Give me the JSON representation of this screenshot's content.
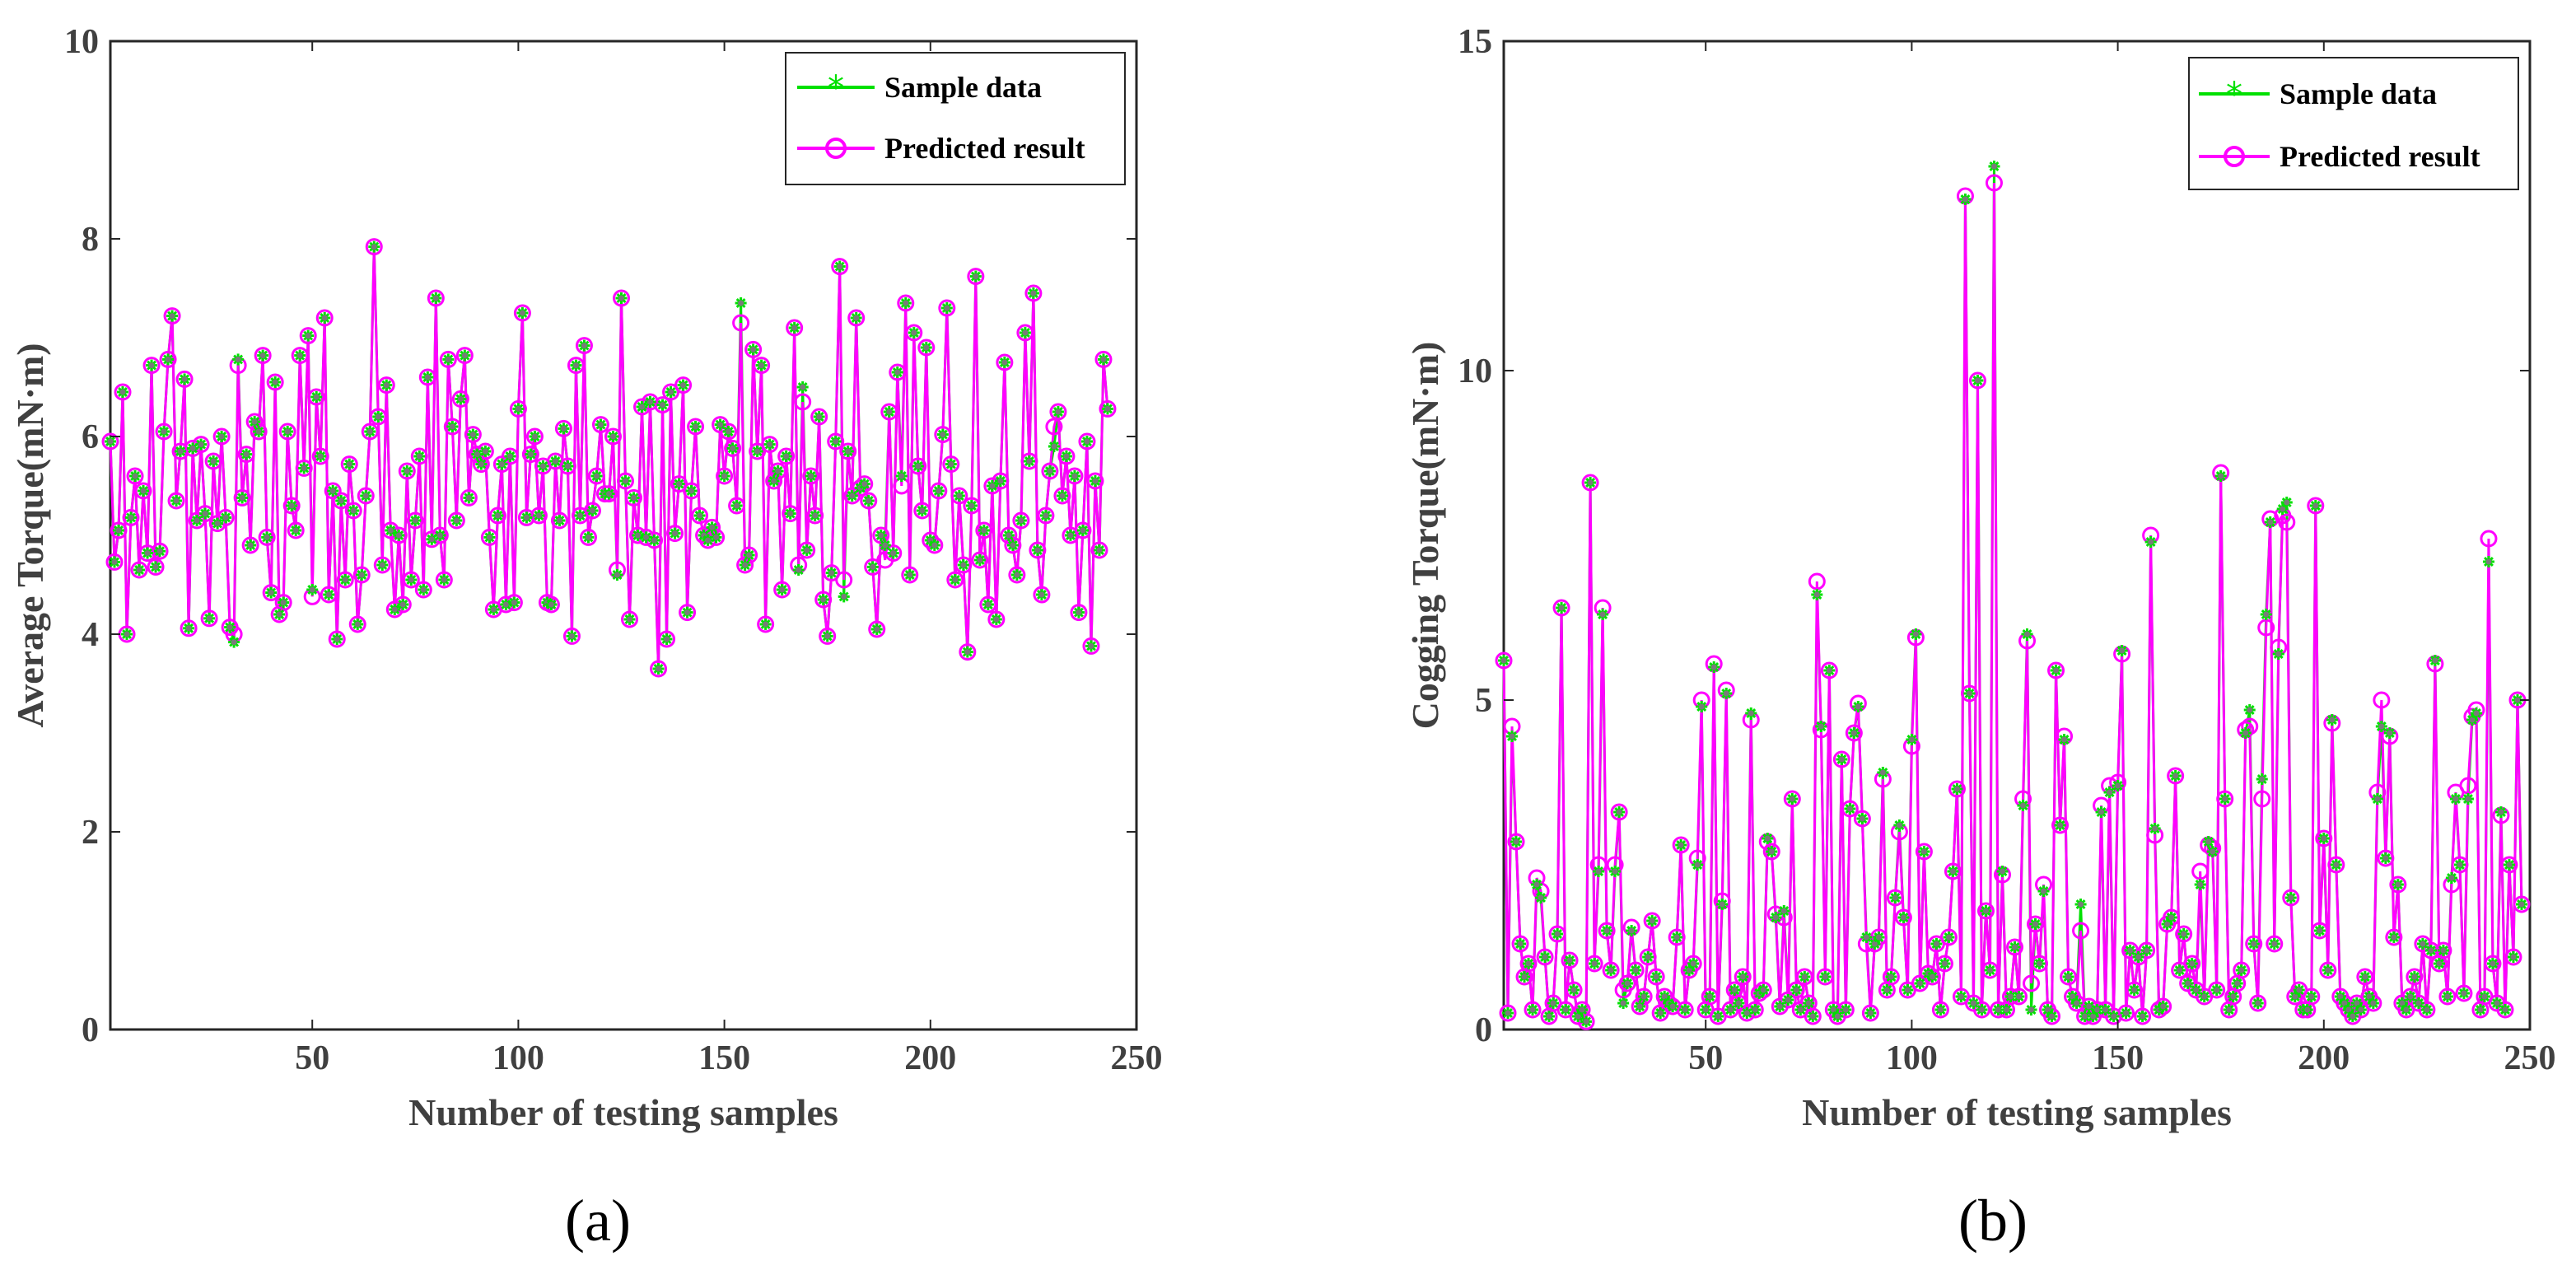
{
  "colors": {
    "sample": "#00e000",
    "predicted": "#ff00ff",
    "axis": "#262626",
    "text": "#404040",
    "marker_edge": "#7a7a7a"
  },
  "chart_data": [
    {
      "type": "line",
      "panel_label": "(a)",
      "xlabel": "Number of testing samples",
      "ylabel": "Average Torque(mN·m)",
      "xlim": [
        1,
        250
      ],
      "ylim": [
        0,
        10
      ],
      "xticks": [
        50,
        100,
        150,
        200,
        250
      ],
      "yticks": [
        0,
        2,
        4,
        6,
        8,
        10
      ],
      "legend_position": "top-right",
      "series": [
        {
          "name": "Sample data",
          "marker": "asterisk",
          "values": [
            5.95,
            4.73,
            5.05,
            6.45,
            4.0,
            5.18,
            5.6,
            4.65,
            5.45,
            4.82,
            6.72,
            4.68,
            4.84,
            6.05,
            6.78,
            7.22,
            5.35,
            5.85,
            6.58,
            4.06,
            5.88,
            5.15,
            5.92,
            5.22,
            4.16,
            5.75,
            5.12,
            6.0,
            5.18,
            4.07,
            3.92,
            6.78,
            5.38,
            5.82,
            4.9,
            6.15,
            6.05,
            6.82,
            4.98,
            4.42,
            6.55,
            4.2,
            4.32,
            6.05,
            5.3,
            5.05,
            6.82,
            5.68,
            7.02,
            4.45,
            6.4,
            5.8,
            7.2,
            4.4,
            5.45,
            3.95,
            5.35,
            4.55,
            5.72,
            5.25,
            4.1,
            4.6,
            5.4,
            6.05,
            7.92,
            6.2,
            4.7,
            6.52,
            5.05,
            4.25,
            5.0,
            4.3,
            5.65,
            4.55,
            5.15,
            5.8,
            4.45,
            6.6,
            4.96,
            7.4,
            5.0,
            4.55,
            6.78,
            6.1,
            5.15,
            6.38,
            6.82,
            5.38,
            6.02,
            5.82,
            5.72,
            5.85,
            4.98,
            4.25,
            5.2,
            5.72,
            4.3,
            5.8,
            4.32,
            6.28,
            7.25,
            5.18,
            5.82,
            6.0,
            5.2,
            5.7,
            4.32,
            4.3,
            5.75,
            5.15,
            6.08,
            5.7,
            3.98,
            6.72,
            5.2,
            6.92,
            4.98,
            5.25,
            5.6,
            6.12,
            5.42,
            5.42,
            6.0,
            4.6,
            7.4,
            5.55,
            4.15,
            5.38,
            5.0,
            6.3,
            4.98,
            6.35,
            4.95,
            3.65,
            6.32,
            3.95,
            6.45,
            5.02,
            5.52,
            6.52,
            4.22,
            5.45,
            6.1,
            5.2,
            5.0,
            4.95,
            5.08,
            4.98,
            6.12,
            5.6,
            6.05,
            5.88,
            5.3,
            7.35,
            4.7,
            4.8,
            6.88,
            5.85,
            6.72,
            4.1,
            5.92,
            5.55,
            5.65,
            4.45,
            5.8,
            5.22,
            7.1,
            4.65,
            6.5,
            4.85,
            5.6,
            5.2,
            6.2,
            4.35,
            3.98,
            4.62,
            5.95,
            7.72,
            4.38,
            5.85,
            5.4,
            7.2,
            5.48,
            5.52,
            5.35,
            4.68,
            4.05,
            5.0,
            4.9,
            6.25,
            4.82,
            6.65,
            5.6,
            7.35,
            4.6,
            7.05,
            5.7,
            5.25,
            6.9,
            4.95,
            4.9,
            5.45,
            6.02,
            7.3,
            5.72,
            4.55,
            5.4,
            4.7,
            3.82,
            5.3,
            7.62,
            4.75,
            5.05,
            4.3,
            5.5,
            4.15,
            5.55,
            6.75,
            5.0,
            4.9,
            4.6,
            5.15,
            7.05,
            5.75,
            7.45,
            4.85,
            4.4,
            5.2,
            5.65,
            5.9,
            6.25,
            5.4,
            5.8,
            5.0,
            5.6,
            4.22,
            5.05,
            5.95,
            3.88,
            5.55,
            4.85,
            6.78,
            6.28
          ]
        },
        {
          "name": "Predicted result",
          "marker": "circle",
          "values": [
            5.95,
            4.73,
            5.05,
            6.45,
            4.0,
            5.18,
            5.6,
            4.65,
            5.45,
            4.82,
            6.72,
            4.68,
            4.84,
            6.05,
            6.78,
            7.22,
            5.35,
            5.85,
            6.58,
            4.06,
            5.88,
            5.15,
            5.92,
            5.22,
            4.16,
            5.75,
            5.12,
            6.0,
            5.18,
            4.07,
            4.0,
            6.72,
            5.38,
            5.82,
            4.9,
            6.15,
            6.05,
            6.82,
            4.98,
            4.42,
            6.55,
            4.2,
            4.32,
            6.05,
            5.3,
            5.05,
            6.82,
            5.68,
            7.02,
            4.38,
            6.4,
            5.8,
            7.2,
            4.4,
            5.45,
            3.95,
            5.35,
            4.55,
            5.72,
            5.25,
            4.1,
            4.6,
            5.4,
            6.05,
            7.92,
            6.2,
            4.7,
            6.52,
            5.05,
            4.25,
            5.0,
            4.3,
            5.65,
            4.55,
            5.15,
            5.8,
            4.45,
            6.6,
            4.96,
            7.4,
            5.0,
            4.55,
            6.78,
            6.1,
            5.15,
            6.38,
            6.82,
            5.38,
            6.02,
            5.82,
            5.72,
            5.85,
            4.98,
            4.25,
            5.2,
            5.72,
            4.3,
            5.8,
            4.32,
            6.28,
            7.25,
            5.18,
            5.82,
            6.0,
            5.2,
            5.7,
            4.32,
            4.3,
            5.75,
            5.15,
            6.08,
            5.7,
            3.98,
            6.72,
            5.2,
            6.92,
            4.98,
            5.25,
            5.6,
            6.12,
            5.42,
            5.42,
            6.0,
            4.65,
            7.4,
            5.55,
            4.15,
            5.38,
            5.0,
            6.3,
            4.98,
            6.35,
            4.95,
            3.65,
            6.32,
            3.95,
            6.45,
            5.02,
            5.52,
            6.52,
            4.22,
            5.45,
            6.1,
            5.2,
            5.0,
            4.95,
            5.08,
            4.98,
            6.12,
            5.6,
            6.05,
            5.88,
            5.3,
            7.15,
            4.7,
            4.8,
            6.88,
            5.85,
            6.72,
            4.1,
            5.92,
            5.55,
            5.65,
            4.45,
            5.8,
            5.22,
            7.1,
            4.7,
            6.35,
            4.85,
            5.6,
            5.2,
            6.2,
            4.35,
            3.98,
            4.62,
            5.95,
            7.72,
            4.55,
            5.85,
            5.4,
            7.2,
            5.48,
            5.52,
            5.35,
            4.68,
            4.05,
            5.0,
            4.75,
            6.25,
            4.82,
            6.65,
            5.5,
            7.35,
            4.6,
            7.05,
            5.7,
            5.25,
            6.9,
            4.95,
            4.9,
            5.45,
            6.02,
            7.3,
            5.72,
            4.55,
            5.4,
            4.7,
            3.82,
            5.3,
            7.62,
            4.75,
            5.05,
            4.3,
            5.5,
            4.15,
            5.55,
            6.75,
            5.0,
            4.9,
            4.6,
            5.15,
            7.05,
            5.75,
            7.45,
            4.85,
            4.4,
            5.2,
            5.65,
            6.1,
            6.25,
            5.4,
            5.8,
            5.0,
            5.6,
            4.22,
            5.05,
            5.95,
            3.88,
            5.55,
            4.85,
            6.78,
            6.28
          ]
        }
      ]
    },
    {
      "type": "line",
      "panel_label": "(b)",
      "xlabel": "Number of testing samples",
      "ylabel": "Cogging Torque(mN·m)",
      "xlim": [
        1,
        250
      ],
      "ylim": [
        0,
        15
      ],
      "xticks": [
        50,
        100,
        150,
        200,
        250
      ],
      "yticks": [
        0,
        5,
        10,
        15
      ],
      "legend_position": "top-right",
      "series": [
        {
          "name": "Sample data",
          "marker": "asterisk",
          "values": [
            5.6,
            0.25,
            4.45,
            2.85,
            1.3,
            0.8,
            1.0,
            0.3,
            2.2,
            2.0,
            1.1,
            0.2,
            0.4,
            1.45,
            6.4,
            0.3,
            1.05,
            0.6,
            0.2,
            0.3,
            0.12,
            8.3,
            1.0,
            2.4,
            6.3,
            1.5,
            0.9,
            2.4,
            3.3,
            0.4,
            0.7,
            1.5,
            0.9,
            0.35,
            0.5,
            1.1,
            1.65,
            0.8,
            0.25,
            0.5,
            0.4,
            0.35,
            1.4,
            2.8,
            0.3,
            0.9,
            1.0,
            2.5,
            4.9,
            0.3,
            0.5,
            5.5,
            0.2,
            1.9,
            5.1,
            0.3,
            0.6,
            0.4,
            0.8,
            0.25,
            4.8,
            0.3,
            0.55,
            0.6,
            2.9,
            2.7,
            1.7,
            0.35,
            1.8,
            0.45,
            3.5,
            0.6,
            0.3,
            0.8,
            0.4,
            0.2,
            6.6,
            4.6,
            0.8,
            5.45,
            0.3,
            0.2,
            4.1,
            0.3,
            3.35,
            4.5,
            4.9,
            3.2,
            1.4,
            0.25,
            1.3,
            1.4,
            3.9,
            0.6,
            0.8,
            2.0,
            3.1,
            1.7,
            0.6,
            4.4,
            6.0,
            0.7,
            2.7,
            0.85,
            0.8,
            1.3,
            0.3,
            1.0,
            1.4,
            2.4,
            3.65,
            0.5,
            12.6,
            5.1,
            0.4,
            9.85,
            0.3,
            1.8,
            0.9,
            13.1,
            0.3,
            2.4,
            0.3,
            0.5,
            1.25,
            0.5,
            3.4,
            6.0,
            0.3,
            1.6,
            1.0,
            2.1,
            0.3,
            0.2,
            5.45,
            3.1,
            4.4,
            0.8,
            0.5,
            0.4,
            1.9,
            0.2,
            0.35,
            0.2,
            0.3,
            3.3,
            0.3,
            3.6,
            0.2,
            3.7,
            5.75,
            0.25,
            1.2,
            0.6,
            1.1,
            0.2,
            1.2,
            7.4,
            3.05,
            0.3,
            0.35,
            1.6,
            1.7,
            3.85,
            0.9,
            1.45,
            0.7,
            1.0,
            0.6,
            2.2,
            0.5,
            2.85,
            2.7,
            0.6,
            8.4,
            3.5,
            0.3,
            0.5,
            0.7,
            0.9,
            4.5,
            4.85,
            1.3,
            0.4,
            3.8,
            6.3,
            7.7,
            1.3,
            5.7,
            7.9,
            8.0,
            2.0,
            0.5,
            0.6,
            0.3,
            0.3,
            0.5,
            7.95,
            1.5,
            2.9,
            0.9,
            4.7,
            2.5,
            0.5,
            0.4,
            0.3,
            0.2,
            0.4,
            0.3,
            0.8,
            0.5,
            0.4,
            3.5,
            4.6,
            2.6,
            4.5,
            1.4,
            2.2,
            0.4,
            0.3,
            0.5,
            0.8,
            0.4,
            1.3,
            0.3,
            1.2,
            5.6,
            1.0,
            1.2,
            0.5,
            2.3,
            3.5,
            2.5,
            0.55,
            3.5,
            4.7,
            4.8,
            0.3,
            0.5,
            7.1,
            1.0,
            0.4,
            3.3,
            0.3,
            2.5,
            1.1,
            5.0,
            1.9
          ]
        },
        {
          "name": "Predicted result",
          "marker": "circle",
          "values": [
            5.6,
            0.25,
            4.6,
            2.85,
            1.3,
            0.8,
            1.0,
            0.3,
            2.3,
            2.1,
            1.1,
            0.2,
            0.4,
            1.45,
            6.4,
            0.3,
            1.05,
            0.6,
            0.2,
            0.3,
            0.12,
            8.3,
            1.0,
            2.5,
            6.4,
            1.5,
            0.9,
            2.5,
            3.3,
            0.6,
            0.7,
            1.55,
            0.9,
            0.35,
            0.5,
            1.1,
            1.65,
            0.8,
            0.25,
            0.5,
            0.4,
            0.35,
            1.4,
            2.8,
            0.3,
            0.9,
            1.0,
            2.6,
            5.0,
            0.3,
            0.5,
            5.55,
            0.2,
            1.95,
            5.15,
            0.3,
            0.6,
            0.4,
            0.8,
            0.25,
            4.7,
            0.3,
            0.55,
            0.6,
            2.85,
            2.7,
            1.75,
            0.35,
            1.7,
            0.45,
            3.5,
            0.6,
            0.3,
            0.8,
            0.4,
            0.2,
            6.8,
            4.55,
            0.8,
            5.45,
            0.3,
            0.2,
            4.1,
            0.3,
            3.35,
            4.5,
            4.95,
            3.2,
            1.3,
            0.25,
            1.3,
            1.4,
            3.8,
            0.6,
            0.8,
            2.0,
            3.0,
            1.7,
            0.6,
            4.3,
            5.95,
            0.7,
            2.7,
            0.85,
            0.8,
            1.3,
            0.3,
            1.0,
            1.4,
            2.4,
            3.65,
            0.5,
            12.65,
            5.1,
            0.4,
            9.85,
            0.3,
            1.8,
            0.9,
            12.85,
            0.3,
            2.35,
            0.3,
            0.5,
            1.25,
            0.5,
            3.5,
            5.9,
            0.7,
            1.6,
            1.0,
            2.2,
            0.3,
            0.2,
            5.45,
            3.1,
            4.45,
            0.8,
            0.5,
            0.4,
            1.5,
            0.2,
            0.35,
            0.2,
            0.3,
            3.4,
            0.3,
            3.7,
            0.2,
            3.75,
            5.7,
            0.25,
            1.2,
            0.6,
            1.1,
            0.2,
            1.2,
            7.5,
            2.95,
            0.3,
            0.35,
            1.6,
            1.7,
            3.85,
            0.9,
            1.45,
            0.7,
            1.0,
            0.6,
            2.4,
            0.5,
            2.8,
            2.75,
            0.6,
            8.45,
            3.5,
            0.3,
            0.5,
            0.7,
            0.9,
            4.55,
            4.6,
            1.3,
            0.4,
            3.5,
            6.1,
            7.75,
            1.3,
            5.8,
            7.8,
            7.7,
            2.0,
            0.5,
            0.6,
            0.3,
            0.3,
            0.5,
            7.95,
            1.5,
            2.9,
            0.9,
            4.65,
            2.5,
            0.5,
            0.4,
            0.3,
            0.2,
            0.4,
            0.3,
            0.8,
            0.5,
            0.4,
            3.6,
            5.0,
            2.6,
            4.45,
            1.4,
            2.2,
            0.4,
            0.3,
            0.5,
            0.8,
            0.4,
            1.3,
            0.3,
            1.2,
            5.55,
            1.0,
            1.2,
            0.5,
            2.2,
            3.6,
            2.5,
            0.55,
            3.7,
            4.75,
            4.85,
            0.3,
            0.5,
            7.45,
            1.0,
            0.4,
            3.25,
            0.3,
            2.5,
            1.1,
            5.0,
            1.9
          ]
        }
      ]
    }
  ]
}
